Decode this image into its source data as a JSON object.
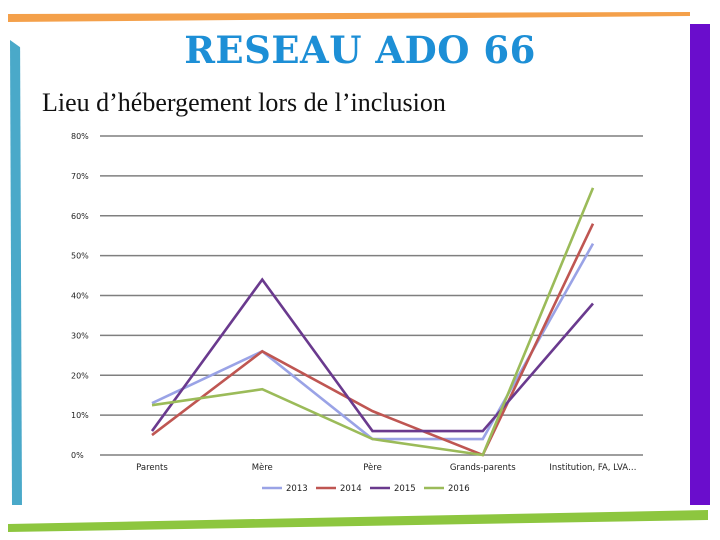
{
  "slide": {
    "title": "RESEAU ADO 66",
    "subtitle": "Lieu d’hébergement lors de l’inclusion"
  },
  "colors": {
    "title": "#1d8fd6",
    "top_bar": "#f4a04a",
    "bottom_bar": "#8dc63f",
    "left_bar": "#4aa9c9",
    "right_bar": "#6a0dcc",
    "gridline": "#7f7f7f"
  },
  "chart_data": {
    "type": "line",
    "categories": [
      "Parents",
      "Mère",
      "Père",
      "Grands-parents",
      "Institution, FA, LVA…"
    ],
    "yticks": [
      "0%",
      "10%",
      "20%",
      "30%",
      "40%",
      "50%",
      "60%",
      "70%",
      "80%"
    ],
    "ylim": [
      0,
      80
    ],
    "grid": true,
    "legend_position": "bottom",
    "series": [
      {
        "name": "2013",
        "color": "#9aa3e6",
        "values": [
          13,
          26,
          4,
          4,
          53
        ]
      },
      {
        "name": "2014",
        "color": "#bf5652",
        "values": [
          5,
          26,
          11,
          0,
          58
        ]
      },
      {
        "name": "2015",
        "color": "#6a3a8e",
        "values": [
          6,
          44,
          6,
          6,
          38
        ]
      },
      {
        "name": "2016",
        "color": "#9bbb59",
        "values": [
          12.5,
          16.5,
          4,
          0,
          67
        ]
      }
    ]
  }
}
